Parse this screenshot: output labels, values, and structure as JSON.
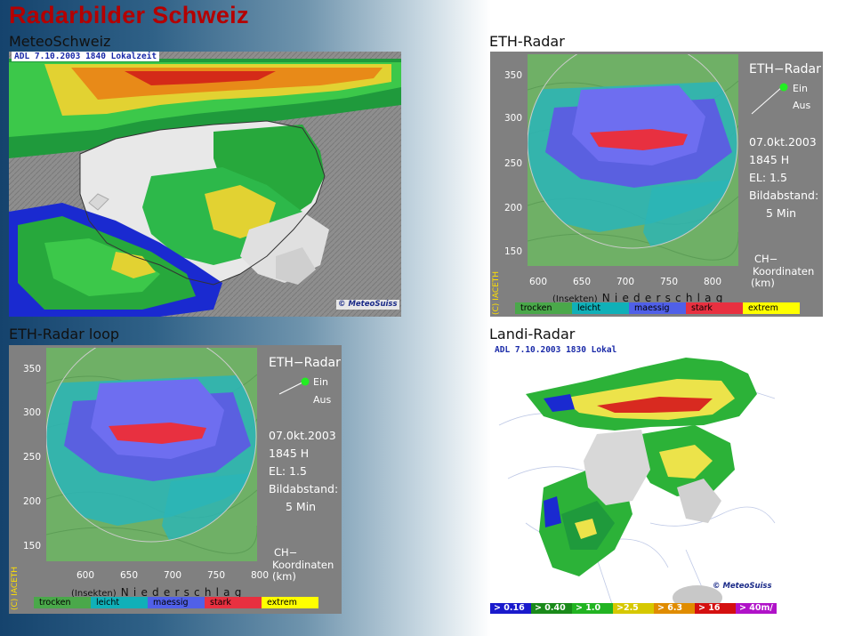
{
  "page": {
    "title": "Radarbilder Schweiz"
  },
  "sections": {
    "meteoschweiz": {
      "label": "MeteoSchweiz",
      "timestamp": "ADL 7.10.2003 1840 Lokalzeit",
      "logo_text": "© MeteoSuiss"
    },
    "eth_radar": {
      "label": "ETH-Radar"
    },
    "eth_radar_loop": {
      "label": "ETH-Radar loop"
    },
    "landi_radar": {
      "label": "Landi-Radar",
      "timestamp": "ADL 7.10.2003 1830 Lokal",
      "logo_text": "© MeteoSuiss",
      "legend": [
        {
          "label": "> 0.16",
          "color": "#1a1acc"
        },
        {
          "label": "> 0.40",
          "color": "#1a8a1a"
        },
        {
          "label": "> 1.0",
          "color": "#22b422"
        },
        {
          "label": ">2.5",
          "color": "#d6c800"
        },
        {
          "label": "> 6.3",
          "color": "#e08c00"
        },
        {
          "label": "> 16",
          "color": "#d41010"
        },
        {
          "label": "> 40m/",
          "color": "#b012c8"
        }
      ]
    }
  },
  "eth": {
    "title": "ETH−Radar",
    "ein": "Ein",
    "aus": "Aus",
    "date": "07.0kt.2003",
    "time": "1845 H",
    "el": "EL: 1.5",
    "bildabstand_label": "Bildabstand:",
    "bildabstand_value": "5 Min",
    "coord_line1": "CH−",
    "coord_line2": "Koordinaten",
    "coord_line3": "(km)",
    "copyright": "(C) IACETH",
    "xlabel_prefix": "(Insekten)",
    "xlabel": "Niederschlag",
    "y_ticks": [
      "350",
      "300",
      "250",
      "200",
      "150"
    ],
    "x_ticks": [
      "600",
      "650",
      "700",
      "750",
      "800"
    ],
    "legend": [
      {
        "label": "trocken",
        "color": "#4aa84a"
      },
      {
        "label": "leicht",
        "color": "#10b0b8"
      },
      {
        "label": "maessig",
        "color": "#5060e8"
      },
      {
        "label": "stark",
        "color": "#e83040"
      },
      {
        "label": "extrem",
        "color": "#ffff00"
      }
    ],
    "indicator_color": "#22ee22"
  }
}
